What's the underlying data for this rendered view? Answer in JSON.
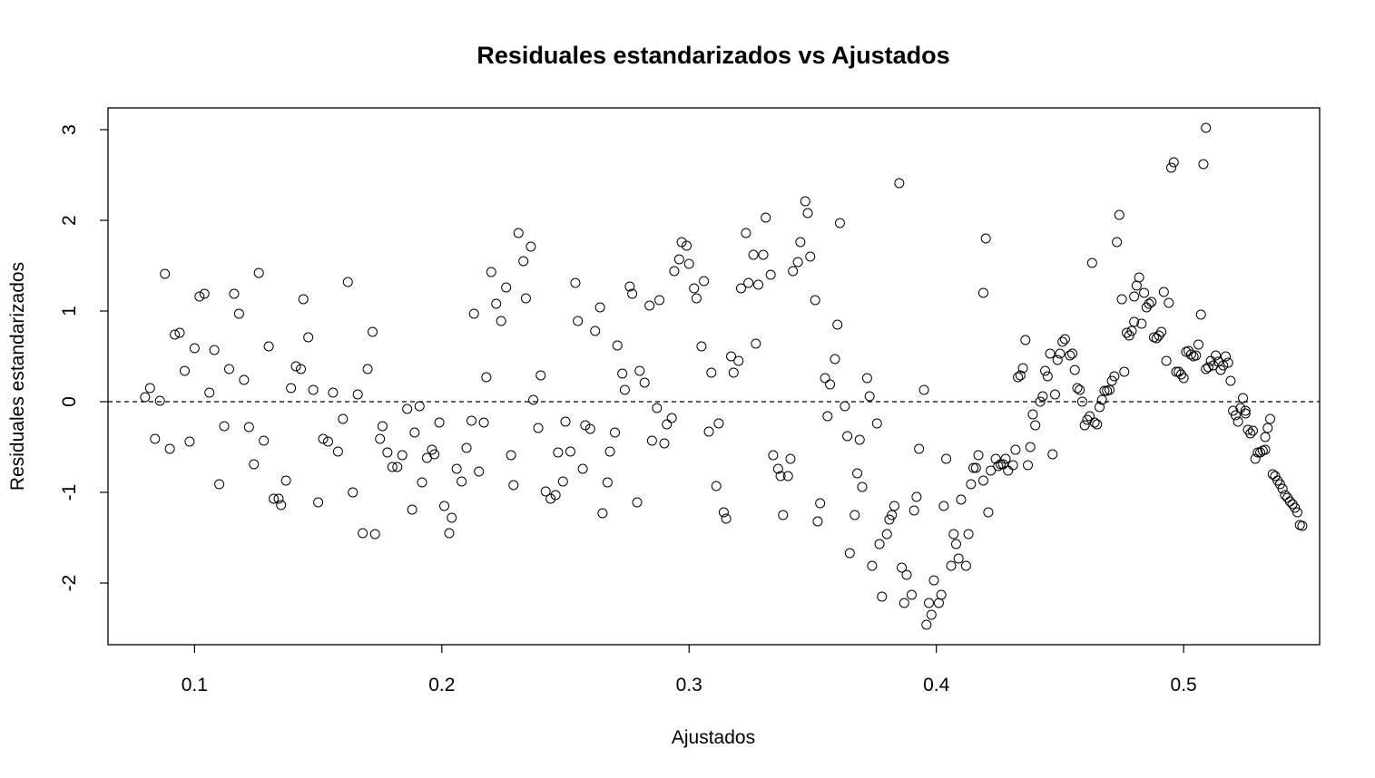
{
  "chart_data": {
    "type": "scatter",
    "title": "Residuales estandarizados vs Ajustados",
    "xlabel": "Ajustados",
    "ylabel": "Residuales estandarizados",
    "xlim": [
      0.065,
      0.555
    ],
    "ylim": [
      -2.68,
      3.24
    ],
    "x_ticks": [
      0.1,
      0.2,
      0.3,
      0.4,
      0.5
    ],
    "x_tick_labels": [
      "0.1",
      "0.2",
      "0.3",
      "0.4",
      "0.5"
    ],
    "y_ticks": [
      -2,
      -1,
      0,
      1,
      2,
      3
    ],
    "y_tick_labels": [
      "-2",
      "-1",
      "0",
      "1",
      "2",
      "3"
    ],
    "reference_line": {
      "y": 0,
      "style": "dashed"
    },
    "grid": false,
    "marker": "open-circle",
    "point_color": "#000000",
    "points": [
      [
        0.08,
        0.05
      ],
      [
        0.082,
        0.15
      ],
      [
        0.084,
        -0.41
      ],
      [
        0.086,
        0.01
      ],
      [
        0.088,
        1.41
      ],
      [
        0.09,
        -0.52
      ],
      [
        0.092,
        0.74
      ],
      [
        0.094,
        0.76
      ],
      [
        0.096,
        0.34
      ],
      [
        0.098,
        -0.44
      ],
      [
        0.1,
        0.59
      ],
      [
        0.102,
        1.16
      ],
      [
        0.104,
        1.19
      ],
      [
        0.106,
        0.1
      ],
      [
        0.108,
        0.57
      ],
      [
        0.11,
        -0.91
      ],
      [
        0.112,
        -0.27
      ],
      [
        0.114,
        0.36
      ],
      [
        0.116,
        1.19
      ],
      [
        0.118,
        0.97
      ],
      [
        0.12,
        0.24
      ],
      [
        0.122,
        -0.28
      ],
      [
        0.124,
        -0.69
      ],
      [
        0.126,
        1.42
      ],
      [
        0.128,
        -0.43
      ],
      [
        0.13,
        0.61
      ],
      [
        0.132,
        -1.07
      ],
      [
        0.134,
        -1.07
      ],
      [
        0.135,
        -1.14
      ],
      [
        0.137,
        -0.87
      ],
      [
        0.139,
        0.15
      ],
      [
        0.141,
        0.39
      ],
      [
        0.143,
        0.36
      ],
      [
        0.144,
        1.13
      ],
      [
        0.146,
        0.71
      ],
      [
        0.148,
        0.13
      ],
      [
        0.15,
        -1.11
      ],
      [
        0.152,
        -0.41
      ],
      [
        0.154,
        -0.44
      ],
      [
        0.156,
        0.1
      ],
      [
        0.158,
        -0.55
      ],
      [
        0.16,
        -0.19
      ],
      [
        0.162,
        1.32
      ],
      [
        0.164,
        -1.0
      ],
      [
        0.166,
        0.08
      ],
      [
        0.168,
        -1.45
      ],
      [
        0.17,
        0.36
      ],
      [
        0.172,
        0.77
      ],
      [
        0.173,
        -1.46
      ],
      [
        0.175,
        -0.41
      ],
      [
        0.176,
        -0.27
      ],
      [
        0.178,
        -0.56
      ],
      [
        0.18,
        -0.72
      ],
      [
        0.182,
        -0.72
      ],
      [
        0.184,
        -0.59
      ],
      [
        0.186,
        -0.08
      ],
      [
        0.188,
        -1.19
      ],
      [
        0.189,
        -0.34
      ],
      [
        0.191,
        -0.05
      ],
      [
        0.192,
        -0.89
      ],
      [
        0.194,
        -0.62
      ],
      [
        0.196,
        -0.53
      ],
      [
        0.197,
        -0.58
      ],
      [
        0.199,
        -0.23
      ],
      [
        0.201,
        -1.15
      ],
      [
        0.203,
        -1.45
      ],
      [
        0.204,
        -1.28
      ],
      [
        0.206,
        -0.74
      ],
      [
        0.208,
        -0.88
      ],
      [
        0.21,
        -0.51
      ],
      [
        0.212,
        -0.21
      ],
      [
        0.213,
        0.97
      ],
      [
        0.215,
        -0.77
      ],
      [
        0.217,
        -0.23
      ],
      [
        0.218,
        0.27
      ],
      [
        0.22,
        1.43
      ],
      [
        0.222,
        1.08
      ],
      [
        0.224,
        0.89
      ],
      [
        0.226,
        1.26
      ],
      [
        0.228,
        -0.59
      ],
      [
        0.229,
        -0.92
      ],
      [
        0.231,
        1.86
      ],
      [
        0.233,
        1.55
      ],
      [
        0.234,
        1.14
      ],
      [
        0.236,
        1.71
      ],
      [
        0.237,
        0.02
      ],
      [
        0.239,
        -0.29
      ],
      [
        0.24,
        0.29
      ],
      [
        0.242,
        -0.99
      ],
      [
        0.244,
        -1.07
      ],
      [
        0.246,
        -1.03
      ],
      [
        0.247,
        -0.56
      ],
      [
        0.249,
        -0.88
      ],
      [
        0.25,
        -0.22
      ],
      [
        0.252,
        -0.55
      ],
      [
        0.254,
        1.31
      ],
      [
        0.255,
        0.89
      ],
      [
        0.257,
        -0.74
      ],
      [
        0.258,
        -0.26
      ],
      [
        0.26,
        -0.3
      ],
      [
        0.262,
        0.78
      ],
      [
        0.264,
        1.04
      ],
      [
        0.265,
        -1.23
      ],
      [
        0.267,
        -0.89
      ],
      [
        0.268,
        -0.55
      ],
      [
        0.27,
        -0.34
      ],
      [
        0.271,
        0.62
      ],
      [
        0.273,
        0.31
      ],
      [
        0.274,
        0.13
      ],
      [
        0.276,
        1.27
      ],
      [
        0.277,
        1.19
      ],
      [
        0.279,
        -1.11
      ],
      [
        0.28,
        0.34
      ],
      [
        0.282,
        0.21
      ],
      [
        0.284,
        1.06
      ],
      [
        0.285,
        -0.43
      ],
      [
        0.287,
        -0.07
      ],
      [
        0.288,
        1.12
      ],
      [
        0.29,
        -0.46
      ],
      [
        0.291,
        -0.25
      ],
      [
        0.293,
        -0.18
      ],
      [
        0.294,
        1.44
      ],
      [
        0.296,
        1.57
      ],
      [
        0.297,
        1.76
      ],
      [
        0.299,
        1.72
      ],
      [
        0.3,
        1.52
      ],
      [
        0.302,
        1.25
      ],
      [
        0.303,
        1.14
      ],
      [
        0.305,
        0.61
      ],
      [
        0.306,
        1.33
      ],
      [
        0.308,
        -0.33
      ],
      [
        0.309,
        0.32
      ],
      [
        0.311,
        -0.93
      ],
      [
        0.312,
        -0.24
      ],
      [
        0.314,
        -1.22
      ],
      [
        0.315,
        -1.29
      ],
      [
        0.317,
        0.5
      ],
      [
        0.318,
        0.32
      ],
      [
        0.32,
        0.45
      ],
      [
        0.321,
        1.25
      ],
      [
        0.323,
        1.86
      ],
      [
        0.324,
        1.31
      ],
      [
        0.326,
        1.62
      ],
      [
        0.327,
        0.64
      ],
      [
        0.328,
        1.29
      ],
      [
        0.33,
        1.62
      ],
      [
        0.331,
        2.03
      ],
      [
        0.333,
        1.4
      ],
      [
        0.334,
        -0.59
      ],
      [
        0.336,
        -0.74
      ],
      [
        0.337,
        -0.82
      ],
      [
        0.338,
        -1.25
      ],
      [
        0.34,
        -0.82
      ],
      [
        0.341,
        -0.63
      ],
      [
        0.342,
        1.44
      ],
      [
        0.344,
        1.54
      ],
      [
        0.345,
        1.76
      ],
      [
        0.347,
        2.21
      ],
      [
        0.348,
        2.08
      ],
      [
        0.349,
        1.6
      ],
      [
        0.351,
        1.12
      ],
      [
        0.352,
        -1.32
      ],
      [
        0.353,
        -1.12
      ],
      [
        0.355,
        0.26
      ],
      [
        0.356,
        -0.16
      ],
      [
        0.357,
        0.19
      ],
      [
        0.359,
        0.47
      ],
      [
        0.36,
        0.85
      ],
      [
        0.361,
        1.97
      ],
      [
        0.363,
        -0.05
      ],
      [
        0.364,
        -0.38
      ],
      [
        0.365,
        -1.67
      ],
      [
        0.367,
        -1.25
      ],
      [
        0.368,
        -0.79
      ],
      [
        0.369,
        -0.42
      ],
      [
        0.37,
        -0.94
      ],
      [
        0.372,
        0.26
      ],
      [
        0.373,
        0.06
      ],
      [
        0.374,
        -1.81
      ],
      [
        0.376,
        -0.24
      ],
      [
        0.377,
        -1.57
      ],
      [
        0.378,
        -2.15
      ],
      [
        0.38,
        -1.46
      ],
      [
        0.381,
        -1.3
      ],
      [
        0.382,
        -1.25
      ],
      [
        0.383,
        -1.15
      ],
      [
        0.385,
        2.41
      ],
      [
        0.386,
        -1.83
      ],
      [
        0.387,
        -2.22
      ],
      [
        0.388,
        -1.91
      ],
      [
        0.39,
        -2.13
      ],
      [
        0.391,
        -1.2
      ],
      [
        0.392,
        -1.05
      ],
      [
        0.393,
        -0.52
      ],
      [
        0.395,
        0.13
      ],
      [
        0.396,
        -2.46
      ],
      [
        0.397,
        -2.22
      ],
      [
        0.398,
        -2.35
      ],
      [
        0.399,
        -1.97
      ],
      [
        0.401,
        -2.22
      ],
      [
        0.402,
        -2.13
      ],
      [
        0.403,
        -1.15
      ],
      [
        0.404,
        -0.63
      ],
      [
        0.406,
        -1.81
      ],
      [
        0.407,
        -1.46
      ],
      [
        0.408,
        -1.57
      ],
      [
        0.409,
        -1.73
      ],
      [
        0.41,
        -1.08
      ],
      [
        0.412,
        -1.81
      ],
      [
        0.413,
        -1.46
      ],
      [
        0.414,
        -0.91
      ],
      [
        0.415,
        -0.73
      ],
      [
        0.416,
        -0.73
      ],
      [
        0.417,
        -0.59
      ],
      [
        0.419,
        -0.87
      ],
      [
        0.419,
        1.2
      ],
      [
        0.42,
        1.8
      ],
      [
        0.421,
        -1.22
      ],
      [
        0.422,
        -0.76
      ],
      [
        0.424,
        -0.63
      ],
      [
        0.425,
        -0.71
      ],
      [
        0.426,
        -0.69
      ],
      [
        0.427,
        -0.69
      ],
      [
        0.428,
        -0.63
      ],
      [
        0.429,
        -0.76
      ],
      [
        0.431,
        -0.7
      ],
      [
        0.432,
        -0.53
      ],
      [
        0.433,
        0.27
      ],
      [
        0.434,
        0.29
      ],
      [
        0.435,
        0.37
      ],
      [
        0.436,
        0.68
      ],
      [
        0.437,
        -0.7
      ],
      [
        0.438,
        -0.5
      ],
      [
        0.439,
        -0.14
      ],
      [
        0.44,
        -0.26
      ],
      [
        0.442,
        0.0
      ],
      [
        0.443,
        0.06
      ],
      [
        0.444,
        0.34
      ],
      [
        0.445,
        0.28
      ],
      [
        0.446,
        0.53
      ],
      [
        0.447,
        -0.58
      ],
      [
        0.448,
        0.08
      ],
      [
        0.449,
        0.46
      ],
      [
        0.45,
        0.53
      ],
      [
        0.451,
        0.66
      ],
      [
        0.452,
        0.69
      ],
      [
        0.454,
        0.51
      ],
      [
        0.455,
        0.53
      ],
      [
        0.456,
        0.35
      ],
      [
        0.457,
        0.15
      ],
      [
        0.458,
        0.13
      ],
      [
        0.459,
        0.0
      ],
      [
        0.46,
        -0.26
      ],
      [
        0.461,
        -0.2
      ],
      [
        0.462,
        -0.16
      ],
      [
        0.463,
        1.53
      ],
      [
        0.464,
        -0.23
      ],
      [
        0.465,
        -0.25
      ],
      [
        0.466,
        -0.06
      ],
      [
        0.467,
        0.02
      ],
      [
        0.468,
        0.12
      ],
      [
        0.469,
        0.12
      ],
      [
        0.47,
        0.13
      ],
      [
        0.471,
        0.23
      ],
      [
        0.472,
        0.28
      ],
      [
        0.473,
        1.76
      ],
      [
        0.474,
        2.06
      ],
      [
        0.475,
        1.13
      ],
      [
        0.476,
        0.33
      ],
      [
        0.477,
        0.76
      ],
      [
        0.478,
        0.73
      ],
      [
        0.479,
        0.78
      ],
      [
        0.48,
        0.88
      ],
      [
        0.48,
        1.16
      ],
      [
        0.481,
        1.28
      ],
      [
        0.482,
        1.37
      ],
      [
        0.483,
        0.86
      ],
      [
        0.484,
        1.2
      ],
      [
        0.485,
        1.04
      ],
      [
        0.486,
        1.08
      ],
      [
        0.487,
        1.1
      ],
      [
        0.488,
        0.71
      ],
      [
        0.489,
        0.7
      ],
      [
        0.49,
        0.73
      ],
      [
        0.491,
        0.77
      ],
      [
        0.492,
        1.21
      ],
      [
        0.493,
        0.45
      ],
      [
        0.494,
        1.09
      ],
      [
        0.495,
        2.58
      ],
      [
        0.496,
        2.64
      ],
      [
        0.497,
        0.33
      ],
      [
        0.498,
        0.33
      ],
      [
        0.499,
        0.3
      ],
      [
        0.5,
        0.26
      ],
      [
        0.501,
        0.55
      ],
      [
        0.502,
        0.56
      ],
      [
        0.503,
        0.52
      ],
      [
        0.504,
        0.5
      ],
      [
        0.505,
        0.51
      ],
      [
        0.506,
        0.63
      ],
      [
        0.507,
        0.96
      ],
      [
        0.508,
        2.62
      ],
      [
        0.509,
        3.02
      ],
      [
        0.509,
        0.36
      ],
      [
        0.51,
        0.38
      ],
      [
        0.511,
        0.45
      ],
      [
        0.512,
        0.4
      ],
      [
        0.513,
        0.51
      ],
      [
        0.514,
        0.44
      ],
      [
        0.515,
        0.35
      ],
      [
        0.516,
        0.4
      ],
      [
        0.517,
        0.5
      ],
      [
        0.518,
        0.43
      ],
      [
        0.519,
        0.23
      ],
      [
        0.52,
        -0.1
      ],
      [
        0.521,
        -0.15
      ],
      [
        0.522,
        -0.22
      ],
      [
        0.523,
        -0.07
      ],
      [
        0.524,
        0.04
      ],
      [
        0.525,
        -0.13
      ],
      [
        0.525,
        -0.1
      ],
      [
        0.526,
        -0.31
      ],
      [
        0.527,
        -0.35
      ],
      [
        0.528,
        -0.32
      ],
      [
        0.529,
        -0.63
      ],
      [
        0.53,
        -0.56
      ],
      [
        0.531,
        -0.56
      ],
      [
        0.532,
        -0.54
      ],
      [
        0.533,
        -0.53
      ],
      [
        0.533,
        -0.39
      ],
      [
        0.534,
        -0.29
      ],
      [
        0.535,
        -0.19
      ],
      [
        0.536,
        -0.8
      ],
      [
        0.537,
        -0.82
      ],
      [
        0.538,
        -0.87
      ],
      [
        0.539,
        -0.91
      ],
      [
        0.54,
        -0.96
      ],
      [
        0.541,
        -1.03
      ],
      [
        0.542,
        -1.06
      ],
      [
        0.543,
        -1.1
      ],
      [
        0.544,
        -1.13
      ],
      [
        0.545,
        -1.17
      ],
      [
        0.546,
        -1.22
      ],
      [
        0.547,
        -1.36
      ],
      [
        0.548,
        -1.37
      ]
    ]
  }
}
